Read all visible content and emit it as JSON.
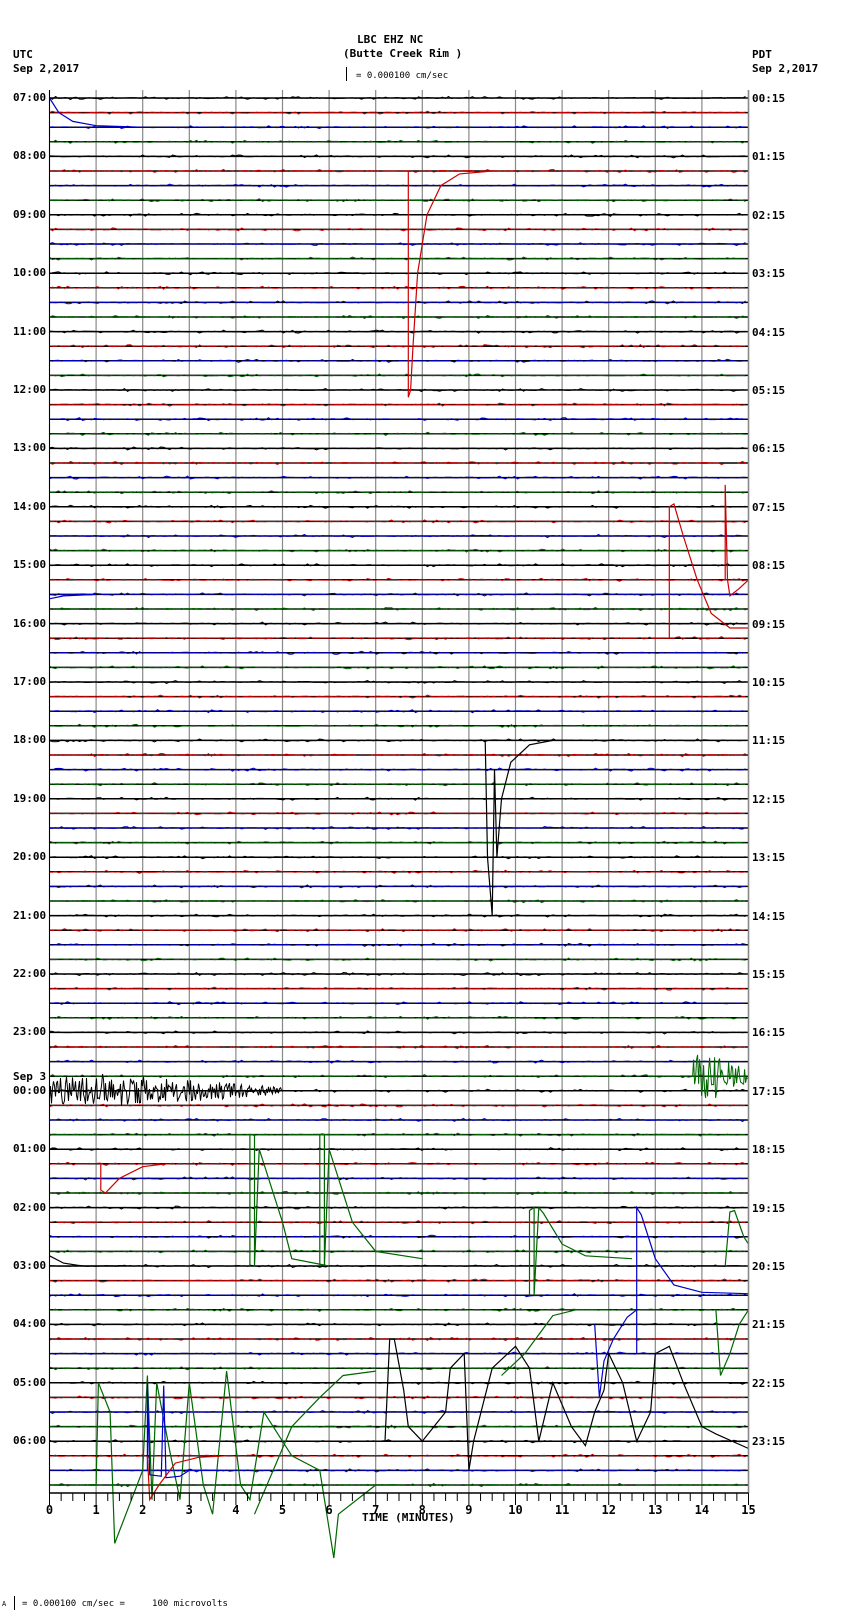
{
  "header": {
    "station": "LBC EHZ NC",
    "site": "(Butte Creek Rim )",
    "scale_text": "= 0.000100 cm/sec",
    "left_tz": "UTC",
    "left_date": "Sep 2,2017",
    "right_tz": "PDT",
    "right_date": "Sep 2,2017"
  },
  "footer": {
    "scale_text": "= 0.000100 cm/sec =     100 microvolts",
    "scale_prefix": "A"
  },
  "chart_data": {
    "type": "line",
    "title": "LBC EHZ NC (Butte Creek Rim ) helicorder",
    "subtitle": "= 0.000100 cm/sec",
    "xlabel": "TIME (MINUTES)",
    "ylabel": "",
    "x_ticks": [
      "0",
      "1",
      "2",
      "3",
      "4",
      "5",
      "6",
      "7",
      "8",
      "9",
      "10",
      "11",
      "12",
      "13",
      "14",
      "15"
    ],
    "xlim": [
      0,
      15
    ],
    "grid": true,
    "trace_count": 96,
    "trace_minutes": 15,
    "trace_colors_cycle": [
      "#000000",
      "#cc0000",
      "#0000cc",
      "#006600"
    ],
    "left_labels": [
      {
        "text": "07:00",
        "trace": 0
      },
      {
        "text": "08:00",
        "trace": 4
      },
      {
        "text": "09:00",
        "trace": 8
      },
      {
        "text": "10:00",
        "trace": 12
      },
      {
        "text": "11:00",
        "trace": 16
      },
      {
        "text": "12:00",
        "trace": 20
      },
      {
        "text": "13:00",
        "trace": 24
      },
      {
        "text": "14:00",
        "trace": 28
      },
      {
        "text": "15:00",
        "trace": 32
      },
      {
        "text": "16:00",
        "trace": 36
      },
      {
        "text": "17:00",
        "trace": 40
      },
      {
        "text": "18:00",
        "trace": 44
      },
      {
        "text": "19:00",
        "trace": 48
      },
      {
        "text": "20:00",
        "trace": 52
      },
      {
        "text": "21:00",
        "trace": 56
      },
      {
        "text": "22:00",
        "trace": 60
      },
      {
        "text": "23:00",
        "trace": 64
      },
      {
        "text": "00:00",
        "trace": 68,
        "date_prefix": "Sep 3"
      },
      {
        "text": "01:00",
        "trace": 72
      },
      {
        "text": "02:00",
        "trace": 76
      },
      {
        "text": "03:00",
        "trace": 80
      },
      {
        "text": "04:00",
        "trace": 84
      },
      {
        "text": "05:00",
        "trace": 88
      },
      {
        "text": "06:00",
        "trace": 92
      }
    ],
    "right_labels": [
      {
        "text": "00:15",
        "trace": 0
      },
      {
        "text": "01:15",
        "trace": 4
      },
      {
        "text": "02:15",
        "trace": 8
      },
      {
        "text": "03:15",
        "trace": 12
      },
      {
        "text": "04:15",
        "trace": 16
      },
      {
        "text": "05:15",
        "trace": 20
      },
      {
        "text": "06:15",
        "trace": 24
      },
      {
        "text": "07:15",
        "trace": 28
      },
      {
        "text": "08:15",
        "trace": 32
      },
      {
        "text": "09:15",
        "trace": 36
      },
      {
        "text": "10:15",
        "trace": 40
      },
      {
        "text": "11:15",
        "trace": 44
      },
      {
        "text": "12:15",
        "trace": 48
      },
      {
        "text": "13:15",
        "trace": 52
      },
      {
        "text": "14:15",
        "trace": 56
      },
      {
        "text": "15:15",
        "trace": 60
      },
      {
        "text": "16:15",
        "trace": 64
      },
      {
        "text": "17:15",
        "trace": 68
      },
      {
        "text": "18:15",
        "trace": 72
      },
      {
        "text": "19:15",
        "trace": 76
      },
      {
        "text": "20:15",
        "trace": 80
      },
      {
        "text": "21:15",
        "trace": 84
      },
      {
        "text": "22:15",
        "trace": 88
      },
      {
        "text": "23:15",
        "trace": 92
      }
    ],
    "events": [
      {
        "desc": "large red step/decay 08:15",
        "color": "#cc0000",
        "points": [
          [
            7.6,
            5
          ],
          [
            7.7,
            5
          ],
          [
            7.7,
            20.5
          ],
          [
            7.75,
            20
          ],
          [
            7.8,
            17
          ],
          [
            7.9,
            12
          ],
          [
            8.1,
            8
          ],
          [
            8.4,
            6
          ],
          [
            8.8,
            5.2
          ],
          [
            9.5,
            5
          ]
        ]
      },
      {
        "desc": "red spike 14:15",
        "color": "#cc0000",
        "points": [
          [
            13.3,
            37
          ],
          [
            13.3,
            28
          ],
          [
            13.4,
            27.8
          ],
          [
            13.6,
            30
          ],
          [
            13.9,
            33
          ],
          [
            14.2,
            35.3
          ],
          [
            14.6,
            36.3
          ],
          [
            15,
            36.3
          ]
        ]
      },
      {
        "desc": "red spike 14:45",
        "color": "#cc0000",
        "points": [
          [
            14.5,
            33
          ],
          [
            14.5,
            26.5
          ],
          [
            14.55,
            33
          ],
          [
            14.6,
            34.1
          ],
          [
            14.8,
            33.6
          ],
          [
            15,
            33
          ]
        ]
      },
      {
        "desc": "black dip 18:00-21:00",
        "color": "#000000",
        "points": [
          [
            9.35,
            44
          ],
          [
            9.4,
            52
          ],
          [
            9.5,
            56
          ],
          [
            9.55,
            46
          ],
          [
            9.6,
            52
          ],
          [
            9.7,
            48
          ],
          [
            9.9,
            45.5
          ],
          [
            10.3,
            44.3
          ],
          [
            10.8,
            44
          ],
          [
            11.2,
            44
          ]
        ]
      },
      {
        "desc": "black quake Sep3 00:00",
        "color": "#000000",
        "type": "noise",
        "trace": 68,
        "from": 0,
        "to": 5,
        "amp": 9
      },
      {
        "desc": "green burst 00:15",
        "color": "#006600",
        "type": "noise",
        "trace": 67,
        "from": 13.8,
        "to": 15,
        "amp": 14
      },
      {
        "desc": "red decay 01:15",
        "color": "#cc0000",
        "points": [
          [
            1.1,
            73
          ],
          [
            1.1,
            74.8
          ],
          [
            1.2,
            75
          ],
          [
            1.5,
            74
          ],
          [
            2,
            73.2
          ],
          [
            2.5,
            73
          ]
        ]
      },
      {
        "desc": "green pulse 01:45",
        "color": "#006600",
        "points": [
          [
            4.3,
            80
          ],
          [
            4.3,
            71
          ],
          [
            4.4,
            71
          ],
          [
            4.4,
            80
          ],
          [
            4.5,
            72
          ],
          [
            4.6,
            73
          ],
          [
            5,
            77
          ],
          [
            5.2,
            79.5
          ],
          [
            6,
            80
          ]
        ]
      },
      {
        "desc": "green pulse 01:45b",
        "color": "#006600",
        "points": [
          [
            5.8,
            80
          ],
          [
            5.8,
            71
          ],
          [
            5.9,
            71
          ],
          [
            5.9,
            80
          ],
          [
            6.0,
            72
          ],
          [
            6.1,
            73
          ],
          [
            6.5,
            77
          ],
          [
            7,
            79
          ],
          [
            8,
            79.5
          ]
        ]
      },
      {
        "desc": "green pulse 02:15",
        "color": "#006600",
        "points": [
          [
            10.3,
            82
          ],
          [
            10.3,
            76.2
          ],
          [
            10.4,
            76
          ],
          [
            10.4,
            82
          ],
          [
            10.5,
            76
          ],
          [
            10.6,
            76.4
          ],
          [
            11,
            78.5
          ],
          [
            11.5,
            79.3
          ],
          [
            12.5,
            79.5
          ]
        ]
      },
      {
        "desc": "blue pulse 02:15",
        "color": "#0000cc",
        "points": [
          [
            12.6,
            86
          ],
          [
            12.6,
            76
          ],
          [
            12.7,
            76.5
          ],
          [
            13,
            79.5
          ],
          [
            13.4,
            81.3
          ],
          [
            14,
            81.8
          ],
          [
            15,
            81.9
          ]
        ]
      },
      {
        "desc": "green 02:45 right",
        "color": "#006600",
        "points": [
          [
            14.5,
            80
          ],
          [
            14.6,
            76.3
          ],
          [
            14.7,
            76.2
          ],
          [
            14.9,
            78
          ],
          [
            15,
            78.5
          ]
        ]
      },
      {
        "desc": "green low swings",
        "color": "#006600",
        "points": [
          [
            1,
            95
          ],
          [
            1.05,
            88
          ],
          [
            1.3,
            90
          ],
          [
            1.4,
            99
          ],
          [
            2,
            94
          ],
          [
            2.1,
            87.5
          ],
          [
            2.2,
            96
          ],
          [
            2.3,
            88
          ],
          [
            2.6,
            93
          ],
          [
            2.8,
            96
          ],
          [
            3.0,
            88
          ],
          [
            3.3,
            95
          ],
          [
            3.5,
            97
          ],
          [
            3.8,
            87.2
          ],
          [
            4.1,
            95
          ],
          [
            4.3,
            96
          ],
          [
            4.6,
            90
          ],
          [
            5.2,
            93
          ],
          [
            5.8,
            94
          ],
          [
            6.1,
            100
          ],
          [
            6.2,
            97
          ],
          [
            7,
            95
          ],
          [
            7.6,
            95
          ]
        ]
      },
      {
        "desc": "green rising 04:30",
        "color": "#006600",
        "points": [
          [
            4.4,
            97
          ],
          [
            5.2,
            91
          ],
          [
            5.8,
            89
          ],
          [
            6.3,
            87.5
          ],
          [
            7,
            87.2
          ]
        ]
      },
      {
        "desc": "blue spikes 06:00",
        "color": "#0000cc",
        "points": [
          [
            2.1,
            94
          ],
          [
            2.1,
            88
          ],
          [
            2.15,
            94.3
          ],
          [
            2.4,
            94.4
          ],
          [
            2.45,
            88.2
          ],
          [
            2.5,
            94.5
          ],
          [
            2.8,
            94.4
          ],
          [
            3.0,
            94.0
          ],
          [
            3.7,
            94
          ]
        ]
      },
      {
        "desc": "red decay 06:15",
        "color": "#cc0000",
        "points": [
          [
            2.1,
            93
          ],
          [
            2.15,
            96
          ],
          [
            2.35,
            95
          ],
          [
            2.7,
            93.5
          ],
          [
            3.2,
            93.1
          ],
          [
            3.8,
            93
          ]
        ]
      },
      {
        "desc": "black swings 04:30-06:00",
        "color": "#000000",
        "points": [
          [
            7.2,
            92
          ],
          [
            7.3,
            85
          ],
          [
            7.4,
            85
          ],
          [
            7.6,
            88.5
          ],
          [
            7.7,
            91
          ],
          [
            8,
            92
          ],
          [
            8.5,
            90
          ],
          [
            8.6,
            87
          ],
          [
            8.9,
            86
          ],
          [
            9,
            94
          ],
          [
            9.1,
            92
          ],
          [
            9.5,
            87
          ],
          [
            10,
            85.5
          ],
          [
            10.3,
            87
          ],
          [
            10.5,
            92
          ],
          [
            10.8,
            88
          ],
          [
            11.2,
            91
          ],
          [
            11.5,
            92.3
          ],
          [
            11.7,
            90
          ],
          [
            11.9,
            88.5
          ],
          [
            12,
            86
          ],
          [
            12.3,
            88
          ],
          [
            12.6,
            92
          ],
          [
            12.9,
            90
          ],
          [
            13.0,
            86
          ],
          [
            13.3,
            85.5
          ],
          [
            13.6,
            88
          ],
          [
            14,
            91
          ],
          [
            14.3,
            91.5
          ],
          [
            15,
            92.5
          ]
        ]
      },
      {
        "desc": "blue dip 05:00",
        "color": "#0000cc",
        "points": [
          [
            11.7,
            84
          ],
          [
            11.8,
            89
          ],
          [
            11.9,
            86.5
          ],
          [
            12.1,
            85
          ],
          [
            12.4,
            83.5
          ],
          [
            12.6,
            83
          ]
        ]
      },
      {
        "desc": "green rising 04:15",
        "color": "#006600",
        "points": [
          [
            9.7,
            87.5
          ],
          [
            10.2,
            86
          ],
          [
            10.5,
            84.7
          ],
          [
            10.8,
            83.4
          ],
          [
            11.3,
            83
          ],
          [
            12,
            83
          ]
        ]
      },
      {
        "desc": "green 04:45 right",
        "color": "#006600",
        "points": [
          [
            14.3,
            83
          ],
          [
            14.4,
            87.5
          ],
          [
            14.6,
            86
          ],
          [
            14.8,
            84
          ],
          [
            15,
            83
          ]
        ]
      },
      {
        "desc": "blue decay 07:00",
        "color": "#0000cc",
        "points": [
          [
            0,
            0
          ],
          [
            0.2,
            1
          ],
          [
            0.5,
            1.6
          ],
          [
            1,
            1.9
          ],
          [
            2,
            2
          ]
        ]
      },
      {
        "desc": "blue decay 15:30",
        "color": "#0000cc",
        "points": [
          [
            0,
            34.3
          ],
          [
            0.3,
            34.1
          ],
          [
            1,
            34
          ]
        ]
      },
      {
        "desc": "black decay 02:45",
        "color": "#000000",
        "points": [
          [
            0,
            79.3
          ],
          [
            0.3,
            79.8
          ],
          [
            0.7,
            80
          ],
          [
            1.5,
            80
          ]
        ]
      }
    ]
  }
}
